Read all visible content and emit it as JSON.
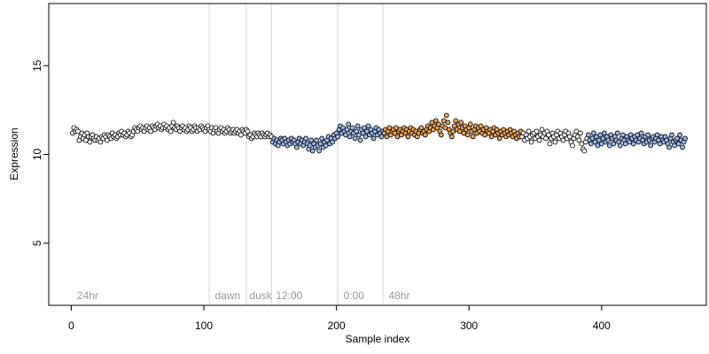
{
  "chart_data": {
    "type": "scatter",
    "title": "",
    "xlabel": "Sample index",
    "ylabel": "Expression",
    "xlim": [
      -17,
      479
    ],
    "ylim": [
      1.5,
      18.5
    ],
    "x_ticks": [
      0,
      100,
      200,
      300,
      400
    ],
    "y_ticks": [
      5,
      10,
      15
    ],
    "grid": false,
    "legend": "none",
    "colors": {
      "default": "#ffffff",
      "orange": "#e8a35a",
      "blue": "#9ab8e8",
      "point_edge": "#000000",
      "divider": "#d9d9d9",
      "annotation": "#9a9a9a",
      "axis": "#000000"
    },
    "dividers": [
      104,
      132,
      151,
      201,
      235
    ],
    "annotations": [
      {
        "x": 3,
        "text": "24hr"
      },
      {
        "x": 107,
        "text": "dawn"
      },
      {
        "x": 133,
        "text": "dusk"
      },
      {
        "x": 153,
        "text": "12:00"
      },
      {
        "x": 204,
        "text": "0:00"
      },
      {
        "x": 238,
        "text": "48hr"
      }
    ],
    "segments": [
      {
        "start": 1,
        "end": 104,
        "color": "default",
        "values": [
          11.2,
          11.5,
          11.3,
          11.4,
          11.3,
          10.8,
          11.0,
          11.2,
          10.9,
          11.1,
          10.8,
          11.2,
          11.0,
          10.7,
          11.0,
          11.1,
          10.9,
          10.8,
          11.0,
          10.8,
          10.9,
          10.7,
          11.0,
          10.9,
          11.1,
          11.0,
          10.8,
          11.1,
          11.0,
          10.9,
          11.2,
          11.0,
          11.1,
          10.9,
          11.0,
          11.2,
          11.1,
          11.3,
          11.1,
          11.2,
          11.0,
          11.1,
          11.3,
          11.2,
          11.0,
          11.1,
          11.3,
          11.5,
          11.4,
          11.3,
          11.5,
          11.6,
          11.4,
          11.5,
          11.3,
          11.5,
          11.6,
          11.4,
          11.5,
          11.3,
          11.6,
          11.5,
          11.4,
          11.6,
          11.7,
          11.5,
          11.6,
          11.4,
          11.5,
          11.7,
          11.5,
          11.6,
          11.4,
          11.5,
          11.3,
          11.6,
          11.8,
          11.5,
          11.4,
          11.6,
          11.5,
          11.3,
          11.5,
          11.6,
          11.4,
          11.5,
          11.3,
          11.4,
          11.6,
          11.5,
          11.3,
          11.4,
          11.6,
          11.5,
          11.3,
          11.5,
          11.4,
          11.6,
          11.5,
          11.4,
          11.3,
          11.5,
          11.6,
          11.4
        ]
      },
      {
        "start": 105,
        "end": 151,
        "color": "default",
        "values": [
          11.3,
          11.5,
          11.2,
          11.4,
          11.5,
          11.3,
          11.2,
          11.4,
          11.5,
          11.3,
          11.4,
          11.2,
          11.3,
          11.5,
          11.4,
          11.2,
          11.3,
          11.4,
          11.2,
          11.3,
          11.4,
          11.2,
          11.3,
          11.1,
          11.4,
          11.3,
          11.2,
          11.4,
          11.3,
          11.0,
          11.1,
          10.9,
          11.0,
          11.2,
          11.1,
          11.0,
          11.2,
          11.1,
          11.0,
          11.2,
          11.1,
          11.0,
          11.1,
          11.2,
          11.0,
          11.1,
          11.0
        ]
      },
      {
        "start": 152,
        "end": 201,
        "color": "blue",
        "values": [
          10.7,
          10.9,
          10.6,
          10.8,
          10.5,
          10.7,
          10.9,
          10.8,
          10.6,
          10.9,
          10.7,
          10.5,
          10.8,
          10.6,
          10.9,
          10.7,
          10.8,
          10.6,
          10.4,
          10.7,
          10.9,
          10.6,
          10.8,
          10.5,
          10.7,
          10.9,
          10.6,
          10.3,
          10.5,
          10.8,
          10.2,
          10.6,
          10.4,
          10.8,
          10.5,
          10.2,
          10.6,
          10.9,
          10.4,
          10.7,
          10.5,
          10.8,
          11.0,
          10.6,
          10.9,
          10.7,
          11.1,
          10.9,
          11.2,
          11.0
        ]
      },
      {
        "start": 202,
        "end": 235,
        "color": "blue",
        "values": [
          11.4,
          11.6,
          11.2,
          11.5,
          11.3,
          11.1,
          11.4,
          11.7,
          11.0,
          11.3,
          11.5,
          11.2,
          10.9,
          11.3,
          11.6,
          11.1,
          10.8,
          11.4,
          11.2,
          11.5,
          11.0,
          11.3,
          11.6,
          11.1,
          11.4,
          11.2,
          10.9,
          11.3,
          11.5,
          11.1,
          11.4,
          11.2,
          11.0,
          11.3
        ]
      },
      {
        "start": 236,
        "end": 339,
        "color": "orange",
        "values": [
          11.2,
          11.4,
          11.0,
          11.3,
          11.5,
          11.1,
          11.3,
          11.4,
          11.2,
          11.5,
          11.0,
          11.3,
          11.4,
          11.1,
          11.3,
          11.5,
          11.2,
          11.4,
          11.0,
          11.3,
          11.5,
          11.2,
          11.4,
          11.1,
          11.3,
          11.0,
          11.2,
          11.4,
          11.5,
          11.2,
          11.3,
          11.1,
          11.4,
          11.6,
          11.3,
          11.5,
          11.8,
          11.4,
          11.6,
          11.9,
          11.5,
          11.7,
          11.3,
          11.1,
          11.6,
          11.9,
          11.5,
          12.2,
          11.8,
          11.4,
          11.2,
          11.0,
          11.3,
          11.6,
          11.9,
          11.4,
          11.7,
          11.3,
          11.8,
          11.5,
          11.2,
          11.6,
          11.4,
          11.1,
          11.5,
          11.7,
          11.3,
          11.0,
          11.4,
          11.6,
          11.2,
          11.5,
          11.3,
          11.6,
          11.2,
          11.4,
          11.1,
          11.5,
          11.3,
          11.2,
          11.4,
          11.0,
          11.3,
          11.5,
          11.1,
          11.4,
          11.2,
          10.9,
          11.3,
          11.1,
          11.4,
          11.2,
          11.0,
          11.3,
          11.1,
          11.4,
          11.2,
          11.0,
          11.3,
          11.1,
          10.9,
          11.2,
          11.0,
          11.3
        ]
      },
      {
        "start": 340,
        "end": 389,
        "color": "default",
        "values": [
          11.0,
          11.2,
          10.8,
          11.1,
          10.9,
          11.3,
          11.0,
          10.7,
          11.1,
          11.2,
          10.9,
          11.3,
          11.0,
          10.8,
          11.1,
          11.4,
          11.0,
          11.2,
          10.9,
          11.3,
          11.1,
          10.6,
          10.9,
          11.2,
          11.0,
          10.7,
          11.1,
          11.3,
          10.9,
          11.2,
          11.0,
          10.8,
          11.1,
          11.3,
          10.9,
          11.2,
          11.0,
          10.7,
          10.5,
          10.9,
          11.1,
          11.3,
          11.0,
          10.8,
          11.2,
          10.6,
          10.3,
          10.2,
          10.7,
          10.9
        ]
      },
      {
        "start": 390,
        "end": 463,
        "color": "blue",
        "values": [
          11.1,
          10.8,
          10.6,
          10.9,
          11.2,
          10.7,
          11.0,
          10.5,
          10.8,
          11.1,
          10.6,
          10.9,
          11.2,
          10.7,
          11.0,
          10.8,
          10.5,
          11.1,
          10.9,
          10.6,
          11.0,
          10.8,
          11.2,
          10.7,
          10.5,
          10.9,
          11.1,
          10.8,
          10.6,
          11.0,
          10.8,
          10.7,
          11.1,
          10.9,
          10.6,
          11.0,
          10.8,
          11.1,
          10.7,
          10.9,
          11.2,
          10.8,
          10.6,
          11.0,
          10.7,
          11.1,
          10.8,
          10.5,
          10.9,
          11.0,
          10.7,
          10.9,
          11.1,
          10.8,
          10.6,
          11.0,
          10.8,
          10.7,
          11.0,
          10.8,
          10.6,
          10.4,
          10.9,
          11.1,
          10.7,
          10.5,
          10.8,
          10.9,
          10.6,
          11.1,
          10.8,
          10.4,
          10.7,
          10.9
        ]
      }
    ]
  }
}
